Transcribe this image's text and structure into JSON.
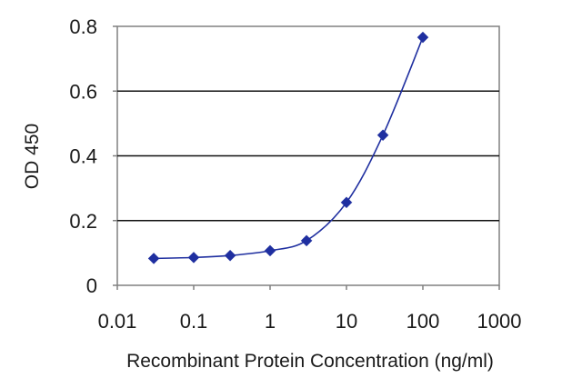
{
  "chart_data": {
    "type": "line",
    "title": "",
    "xlabel": "Recombinant Protein Concentration (ng/ml)",
    "ylabel": "OD 450",
    "x_scale": "log",
    "xlim": [
      0.01,
      1000
    ],
    "ylim": [
      0,
      0.8
    ],
    "x_ticks": [
      0.01,
      0.1,
      1,
      10,
      100,
      1000
    ],
    "x_tick_labels": [
      "0.01",
      "0.1",
      "1",
      "10",
      "100",
      "1000"
    ],
    "y_ticks": [
      0,
      0.2,
      0.4,
      0.6,
      0.8
    ],
    "y_tick_labels": [
      "0",
      "0.2",
      "0.4",
      "0.6",
      "0.8"
    ],
    "grid": "horizontal",
    "legend": "none",
    "series": [
      {
        "color": "#1f2fa0",
        "marker": "diamond",
        "x": [
          0.03,
          0.1,
          0.3,
          1,
          3,
          10,
          30,
          100
        ],
        "y": [
          0.083,
          0.086,
          0.092,
          0.107,
          0.138,
          0.256,
          0.464,
          0.766
        ]
      }
    ]
  }
}
